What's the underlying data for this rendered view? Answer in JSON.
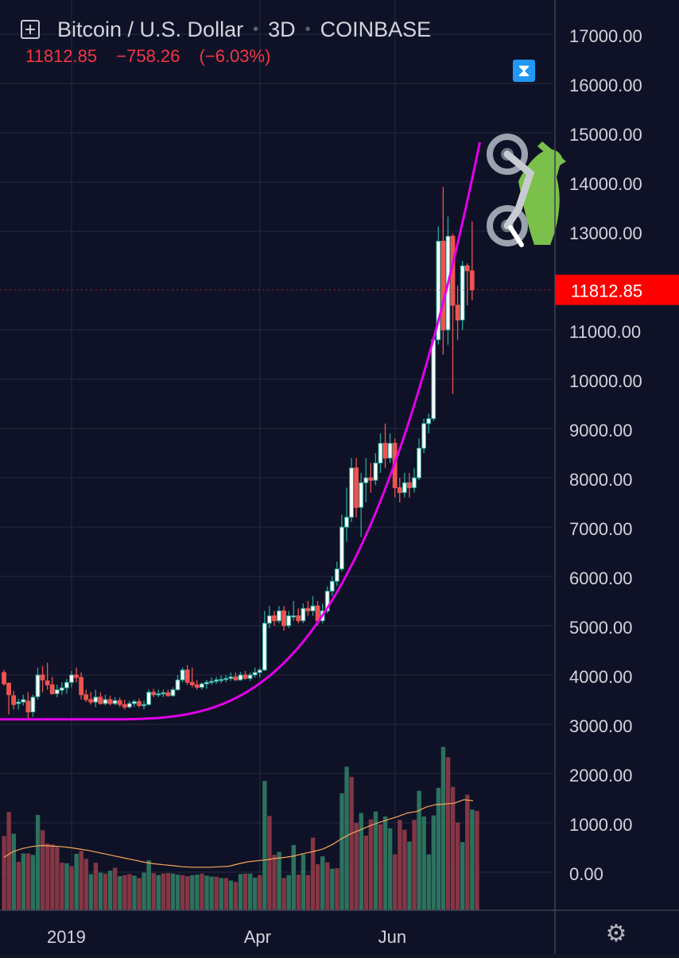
{
  "header": {
    "symbol": "Bitcoin / U.S. Dollar",
    "interval": "3D",
    "exchange": "COINBASE",
    "last": "11812.85",
    "change": "−758.26",
    "change_pct": "(−6.03%)"
  },
  "price_tag": "11812.85",
  "colors": {
    "background": "#0f1226",
    "up": "#26a69a",
    "down": "#ef5350",
    "curve": "#e100e8",
    "price_tag": "#ff0000",
    "volume_ma": "#f7a55a"
  },
  "icons": [
    "add-symbol-icon",
    "hourglass-icon",
    "motorcycle-emoji",
    "settings-gear-icon"
  ],
  "chart_data": {
    "type": "candlestick",
    "y_axis": {
      "side": "right",
      "ticks": [
        "17000.00",
        "16000.00",
        "15000.00",
        "14000.00",
        "13000.00",
        "11000.00",
        "10000.00",
        "9000.00",
        "8000.00",
        "7000.00",
        "6000.00",
        "5000.00",
        "4000.00",
        "3000.00",
        "2000.00",
        "1000.00",
        "0.00"
      ],
      "range": [
        -800,
        17500
      ]
    },
    "x_axis": {
      "ticks": [
        "2019",
        "Apr",
        "Jun"
      ]
    },
    "grid": true,
    "candles": [
      {
        "o": 4050,
        "h": 4100,
        "l": 3780,
        "c": 3820
      },
      {
        "o": 3830,
        "h": 3850,
        "l": 3200,
        "c": 3600
      },
      {
        "o": 3580,
        "h": 3680,
        "l": 3300,
        "c": 3400
      },
      {
        "o": 3420,
        "h": 3520,
        "l": 3300,
        "c": 3450
      },
      {
        "o": 3450,
        "h": 3600,
        "l": 3380,
        "c": 3500
      },
      {
        "o": 3470,
        "h": 3650,
        "l": 3100,
        "c": 3250
      },
      {
        "o": 3250,
        "h": 3600,
        "l": 3150,
        "c": 3550
      },
      {
        "o": 3560,
        "h": 4150,
        "l": 3500,
        "c": 4000
      },
      {
        "o": 4000,
        "h": 4180,
        "l": 3650,
        "c": 3900
      },
      {
        "o": 3880,
        "h": 4250,
        "l": 3700,
        "c": 3800
      },
      {
        "o": 3800,
        "h": 3960,
        "l": 3600,
        "c": 3620
      },
      {
        "o": 3620,
        "h": 3800,
        "l": 3550,
        "c": 3700
      },
      {
        "o": 3690,
        "h": 3850,
        "l": 3600,
        "c": 3740
      },
      {
        "o": 3740,
        "h": 3920,
        "l": 3620,
        "c": 3850
      },
      {
        "o": 3850,
        "h": 4080,
        "l": 3750,
        "c": 4000
      },
      {
        "o": 4000,
        "h": 4150,
        "l": 3850,
        "c": 3950
      },
      {
        "o": 3950,
        "h": 4050,
        "l": 3500,
        "c": 3600
      },
      {
        "o": 3600,
        "h": 3700,
        "l": 3450,
        "c": 3500
      },
      {
        "o": 3500,
        "h": 3650,
        "l": 3400,
        "c": 3450
      },
      {
        "o": 3450,
        "h": 3700,
        "l": 3350,
        "c": 3550
      },
      {
        "o": 3550,
        "h": 3650,
        "l": 3400,
        "c": 3420
      },
      {
        "o": 3420,
        "h": 3600,
        "l": 3380,
        "c": 3500
      },
      {
        "o": 3500,
        "h": 3580,
        "l": 3380,
        "c": 3420
      },
      {
        "o": 3420,
        "h": 3550,
        "l": 3380,
        "c": 3480
      },
      {
        "o": 3480,
        "h": 3540,
        "l": 3350,
        "c": 3400
      },
      {
        "o": 3400,
        "h": 3500,
        "l": 3300,
        "c": 3350
      },
      {
        "o": 3350,
        "h": 3480,
        "l": 3320,
        "c": 3420
      },
      {
        "o": 3420,
        "h": 3500,
        "l": 3350,
        "c": 3460
      },
      {
        "o": 3460,
        "h": 3520,
        "l": 3340,
        "c": 3380
      },
      {
        "o": 3380,
        "h": 3480,
        "l": 3300,
        "c": 3400
      },
      {
        "o": 3400,
        "h": 3700,
        "l": 3380,
        "c": 3650
      },
      {
        "o": 3650,
        "h": 3720,
        "l": 3550,
        "c": 3600
      },
      {
        "o": 3600,
        "h": 3700,
        "l": 3550,
        "c": 3620
      },
      {
        "o": 3620,
        "h": 3700,
        "l": 3550,
        "c": 3640
      },
      {
        "o": 3640,
        "h": 3700,
        "l": 3560,
        "c": 3580
      },
      {
        "o": 3580,
        "h": 3750,
        "l": 3560,
        "c": 3700
      },
      {
        "o": 3700,
        "h": 4000,
        "l": 3680,
        "c": 3900
      },
      {
        "o": 3900,
        "h": 4150,
        "l": 3850,
        "c": 4100
      },
      {
        "o": 4100,
        "h": 4200,
        "l": 3800,
        "c": 3850
      },
      {
        "o": 3850,
        "h": 4150,
        "l": 3750,
        "c": 3800
      },
      {
        "o": 3800,
        "h": 3900,
        "l": 3700,
        "c": 3750
      },
      {
        "o": 3750,
        "h": 3850,
        "l": 3700,
        "c": 3820
      },
      {
        "o": 3820,
        "h": 3900,
        "l": 3720,
        "c": 3850
      },
      {
        "o": 3850,
        "h": 3950,
        "l": 3800,
        "c": 3870
      },
      {
        "o": 3870,
        "h": 3960,
        "l": 3820,
        "c": 3900
      },
      {
        "o": 3900,
        "h": 3990,
        "l": 3830,
        "c": 3910
      },
      {
        "o": 3910,
        "h": 4000,
        "l": 3850,
        "c": 3930
      },
      {
        "o": 3930,
        "h": 4050,
        "l": 3880,
        "c": 3960
      },
      {
        "o": 3960,
        "h": 4050,
        "l": 3880,
        "c": 3900
      },
      {
        "o": 3900,
        "h": 4060,
        "l": 3880,
        "c": 4000
      },
      {
        "o": 4000,
        "h": 4080,
        "l": 3900,
        "c": 3930
      },
      {
        "o": 3930,
        "h": 4050,
        "l": 3880,
        "c": 4000
      },
      {
        "o": 4000,
        "h": 4150,
        "l": 3950,
        "c": 4050
      },
      {
        "o": 4050,
        "h": 4150,
        "l": 3950,
        "c": 4100
      },
      {
        "o": 4100,
        "h": 5300,
        "l": 4080,
        "c": 5050
      },
      {
        "o": 5050,
        "h": 5400,
        "l": 4950,
        "c": 5200
      },
      {
        "o": 5200,
        "h": 5300,
        "l": 5000,
        "c": 5100
      },
      {
        "o": 5100,
        "h": 5400,
        "l": 5050,
        "c": 5300
      },
      {
        "o": 5300,
        "h": 5400,
        "l": 4900,
        "c": 5000
      },
      {
        "o": 5000,
        "h": 5300,
        "l": 4950,
        "c": 5200
      },
      {
        "o": 5200,
        "h": 5500,
        "l": 5100,
        "c": 5200
      },
      {
        "o": 5200,
        "h": 5350,
        "l": 5050,
        "c": 5100
      },
      {
        "o": 5100,
        "h": 5450,
        "l": 5050,
        "c": 5350
      },
      {
        "o": 5350,
        "h": 5500,
        "l": 5200,
        "c": 5300
      },
      {
        "o": 5300,
        "h": 5600,
        "l": 5200,
        "c": 5400
      },
      {
        "o": 5400,
        "h": 5500,
        "l": 5000,
        "c": 5100
      },
      {
        "o": 5100,
        "h": 5450,
        "l": 5050,
        "c": 5300
      },
      {
        "o": 5300,
        "h": 5800,
        "l": 5250,
        "c": 5700
      },
      {
        "o": 5700,
        "h": 6000,
        "l": 5600,
        "c": 5900
      },
      {
        "o": 5900,
        "h": 6300,
        "l": 5800,
        "c": 6150
      },
      {
        "o": 6150,
        "h": 7250,
        "l": 6100,
        "c": 7000
      },
      {
        "o": 7000,
        "h": 7800,
        "l": 6700,
        "c": 7200
      },
      {
        "o": 7200,
        "h": 8400,
        "l": 7100,
        "c": 8200
      },
      {
        "o": 8200,
        "h": 8400,
        "l": 7200,
        "c": 7400
      },
      {
        "o": 7400,
        "h": 8100,
        "l": 6800,
        "c": 7900
      },
      {
        "o": 7900,
        "h": 8400,
        "l": 7500,
        "c": 8000
      },
      {
        "o": 8000,
        "h": 8300,
        "l": 7700,
        "c": 7950
      },
      {
        "o": 7950,
        "h": 8500,
        "l": 7850,
        "c": 8300
      },
      {
        "o": 8300,
        "h": 8900,
        "l": 8100,
        "c": 8700
      },
      {
        "o": 8700,
        "h": 9100,
        "l": 8200,
        "c": 8400
      },
      {
        "o": 8400,
        "h": 8900,
        "l": 8300,
        "c": 8700
      },
      {
        "o": 8700,
        "h": 8800,
        "l": 7600,
        "c": 7800
      },
      {
        "o": 7800,
        "h": 8000,
        "l": 7500,
        "c": 7700
      },
      {
        "o": 7700,
        "h": 8100,
        "l": 7600,
        "c": 7900
      },
      {
        "o": 7900,
        "h": 8100,
        "l": 7600,
        "c": 7800
      },
      {
        "o": 7800,
        "h": 8200,
        "l": 7700,
        "c": 8000
      },
      {
        "o": 8000,
        "h": 8800,
        "l": 7950,
        "c": 8600
      },
      {
        "o": 8600,
        "h": 9200,
        "l": 8500,
        "c": 9100
      },
      {
        "o": 9100,
        "h": 9300,
        "l": 8900,
        "c": 9200
      },
      {
        "o": 9200,
        "h": 10800,
        "l": 9150,
        "c": 10800
      },
      {
        "o": 10800,
        "h": 13100,
        "l": 10700,
        "c": 12800
      },
      {
        "o": 12800,
        "h": 13900,
        "l": 10500,
        "c": 11000
      },
      {
        "o": 11000,
        "h": 13300,
        "l": 10700,
        "c": 12900
      },
      {
        "o": 12900,
        "h": 12950,
        "l": 9700,
        "c": 11500
      },
      {
        "o": 11500,
        "h": 11900,
        "l": 10800,
        "c": 11200
      },
      {
        "o": 11200,
        "h": 12400,
        "l": 11000,
        "c": 12300
      },
      {
        "o": 12300,
        "h": 12350,
        "l": 11500,
        "c": 12200
      },
      {
        "o": 12200,
        "h": 13200,
        "l": 11600,
        "c": 11812.85
      }
    ],
    "volume": [
      {
        "v": 730,
        "up": false
      },
      {
        "v": 1220,
        "up": false
      },
      {
        "v": 780,
        "up": true
      },
      {
        "v": 210,
        "up": false
      },
      {
        "v": 380,
        "up": true
      },
      {
        "v": 380,
        "up": false
      },
      {
        "v": 350,
        "up": true
      },
      {
        "v": 1160,
        "up": true
      },
      {
        "v": 850,
        "up": false
      },
      {
        "v": 580,
        "up": false
      },
      {
        "v": 560,
        "up": false
      },
      {
        "v": 510,
        "up": false
      },
      {
        "v": 190,
        "up": false
      },
      {
        "v": 180,
        "up": true
      },
      {
        "v": 120,
        "up": false
      },
      {
        "v": 370,
        "up": true
      },
      {
        "v": 430,
        "up": false
      },
      {
        "v": 270,
        "up": false
      },
      {
        "v": -40,
        "up": true
      },
      {
        "v": 190,
        "up": false
      },
      {
        "v": -10,
        "up": true
      },
      {
        "v": -30,
        "up": false
      },
      {
        "v": 30,
        "up": true
      },
      {
        "v": 90,
        "up": false
      },
      {
        "v": -80,
        "up": true
      },
      {
        "v": -60,
        "up": false
      },
      {
        "v": -40,
        "up": false
      },
      {
        "v": -70,
        "up": true
      },
      {
        "v": -120,
        "up": false
      },
      {
        "v": -10,
        "up": true
      },
      {
        "v": 240,
        "up": true
      },
      {
        "v": -20,
        "up": false
      },
      {
        "v": -60,
        "up": true
      },
      {
        "v": -30,
        "up": false
      },
      {
        "v": -20,
        "up": false
      },
      {
        "v": -30,
        "up": true
      },
      {
        "v": -50,
        "up": true
      },
      {
        "v": -60,
        "up": false
      },
      {
        "v": -80,
        "up": false
      },
      {
        "v": -60,
        "up": true
      },
      {
        "v": -50,
        "up": true
      },
      {
        "v": -30,
        "up": false
      },
      {
        "v": -70,
        "up": true
      },
      {
        "v": -90,
        "up": true
      },
      {
        "v": -90,
        "up": false
      },
      {
        "v": -120,
        "up": true
      },
      {
        "v": -120,
        "up": false
      },
      {
        "v": -170,
        "up": true
      },
      {
        "v": -200,
        "up": false
      },
      {
        "v": -40,
        "up": true
      },
      {
        "v": -30,
        "up": false
      },
      {
        "v": -30,
        "up": true
      },
      {
        "v": -110,
        "up": true
      },
      {
        "v": -60,
        "up": false
      },
      {
        "v": 1850,
        "up": true
      },
      {
        "v": 1140,
        "up": false
      },
      {
        "v": 350,
        "up": false
      },
      {
        "v": 410,
        "up": true
      },
      {
        "v": -120,
        "up": false
      },
      {
        "v": -60,
        "up": true
      },
      {
        "v": 550,
        "up": true
      },
      {
        "v": -50,
        "up": false
      },
      {
        "v": 360,
        "up": true
      },
      {
        "v": -60,
        "up": false
      },
      {
        "v": 700,
        "up": false
      },
      {
        "v": 160,
        "up": false
      },
      {
        "v": 320,
        "up": true
      },
      {
        "v": 200,
        "up": false
      },
      {
        "v": 70,
        "up": true
      },
      {
        "v": 80,
        "up": false
      },
      {
        "v": 1600,
        "up": true
      },
      {
        "v": 2140,
        "up": true
      },
      {
        "v": 1930,
        "up": false
      },
      {
        "v": 1000,
        "up": false
      },
      {
        "v": 1200,
        "up": true
      },
      {
        "v": 740,
        "up": false
      },
      {
        "v": 1070,
        "up": false
      },
      {
        "v": 1230,
        "up": true
      },
      {
        "v": 970,
        "up": false
      },
      {
        "v": 1130,
        "up": true
      },
      {
        "v": 890,
        "up": true
      },
      {
        "v": 360,
        "up": false
      },
      {
        "v": 1060,
        "up": false
      },
      {
        "v": 860,
        "up": false
      },
      {
        "v": 620,
        "up": true
      },
      {
        "v": 1060,
        "up": false
      },
      {
        "v": 1650,
        "up": true
      },
      {
        "v": 1130,
        "up": true
      },
      {
        "v": 360,
        "up": true
      },
      {
        "v": 1150,
        "up": true
      },
      {
        "v": 1710,
        "up": true
      },
      {
        "v": 2540,
        "up": true
      },
      {
        "v": 2330,
        "up": false
      },
      {
        "v": 1730,
        "up": false
      },
      {
        "v": 1010,
        "up": false
      },
      {
        "v": 610,
        "up": true
      },
      {
        "v": 1570,
        "up": false
      },
      {
        "v": 1270,
        "up": true
      },
      {
        "v": 1240,
        "up": false
      }
    ],
    "volume_ma": [
      300,
      420,
      480,
      520,
      540,
      530,
      520,
      500,
      470,
      440,
      400,
      360,
      320,
      280,
      240,
      200,
      170,
      150,
      130,
      110,
      100,
      100,
      100,
      110,
      120,
      170,
      210,
      230,
      250,
      280,
      300,
      330,
      380,
      420,
      470,
      560,
      680,
      780,
      860,
      940,
      1010,
      1070,
      1130,
      1200,
      1230,
      1320,
      1370,
      1380,
      1400,
      1470,
      1450
    ],
    "curve": [
      [
        0,
        3100
      ],
      [
        10,
        3050
      ],
      [
        20,
        3080
      ],
      [
        30,
        3150
      ],
      [
        40,
        3300
      ],
      [
        50,
        3600
      ],
      [
        60,
        4400
      ],
      [
        70,
        6000
      ],
      [
        80,
        8000
      ],
      [
        90,
        11000
      ],
      [
        98,
        15000
      ]
    ]
  }
}
